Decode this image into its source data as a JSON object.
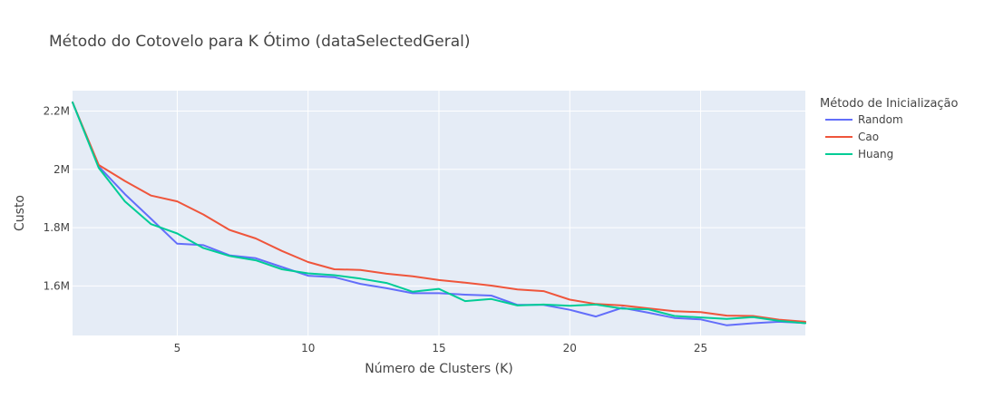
{
  "chart_data": {
    "type": "line",
    "title": "Método do Cotovelo para K Ótimo (dataSelectedGeral)",
    "xlabel": "Número de Clusters (K)",
    "ylabel": "Custo",
    "xlim": [
      1,
      29
    ],
    "ylim": [
      1430000,
      2270000
    ],
    "xticks": [
      5,
      10,
      15,
      20,
      25
    ],
    "xtick_labels": [
      "5",
      "10",
      "15",
      "20",
      "25"
    ],
    "yticks": [
      1600000,
      1800000,
      2000000,
      2200000
    ],
    "ytick_labels": [
      "1.6M",
      "1.8M",
      "2M",
      "2.2M"
    ],
    "grid": true,
    "legend": {
      "title": "Método de Inicialização",
      "position": "right"
    },
    "x": [
      1,
      2,
      3,
      4,
      5,
      6,
      7,
      8,
      9,
      10,
      11,
      12,
      13,
      14,
      15,
      16,
      17,
      18,
      19,
      20,
      21,
      22,
      23,
      24,
      25,
      26,
      27,
      28,
      29
    ],
    "series": [
      {
        "name": "Random",
        "color": "#636efa",
        "values": [
          2230000,
          2010000,
          1915000,
          1830000,
          1745000,
          1740000,
          1705000,
          1695000,
          1665000,
          1635000,
          1630000,
          1607000,
          1592000,
          1575000,
          1575000,
          1570000,
          1567000,
          1535000,
          1535000,
          1518000,
          1495000,
          1525000,
          1508000,
          1490000,
          1485000,
          1465000,
          1472000,
          1477000,
          1473000
        ]
      },
      {
        "name": "Cao",
        "color": "#ef553b",
        "values": [
          2230000,
          2015000,
          1960000,
          1910000,
          1890000,
          1845000,
          1792000,
          1763000,
          1720000,
          1682000,
          1657000,
          1655000,
          1642000,
          1633000,
          1620000,
          1611000,
          1601000,
          1588000,
          1582000,
          1553000,
          1538000,
          1533000,
          1523000,
          1513000,
          1510000,
          1498000,
          1497000,
          1484000,
          1477000
        ]
      },
      {
        "name": "Huang",
        "color": "#00cc96",
        "values": [
          2230000,
          2005000,
          1890000,
          1812000,
          1780000,
          1730000,
          1703000,
          1688000,
          1657000,
          1643000,
          1637000,
          1625000,
          1610000,
          1580000,
          1590000,
          1548000,
          1555000,
          1533000,
          1536000,
          1532000,
          1536000,
          1522000,
          1520000,
          1497000,
          1492000,
          1487000,
          1493000,
          1480000,
          1472000
        ]
      }
    ]
  }
}
